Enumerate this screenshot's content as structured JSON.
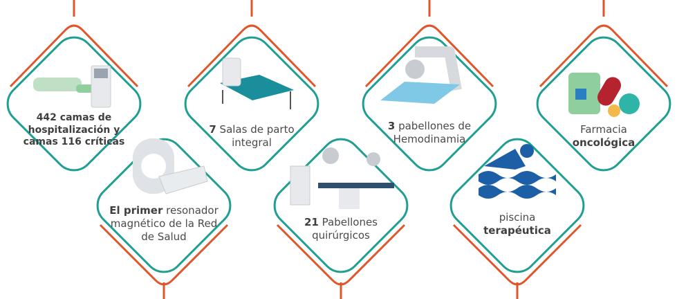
{
  "items": [
    {
      "parts": [
        {
          "text": "442 camas de hospitalización y camas 116 críticas",
          "bold": true
        }
      ]
    },
    {
      "parts": [
        {
          "text": "7",
          "bold": true
        },
        {
          "text": "Salas de parto integral",
          "bold": false
        }
      ]
    },
    {
      "parts": [
        {
          "text": "3",
          "bold": true
        },
        {
          "text": "pabellones de Hemodinamia",
          "bold": false
        }
      ]
    },
    {
      "parts": [
        {
          "text": "Farmacia",
          "bold": false
        },
        {
          "text": "oncológica",
          "bold": true
        }
      ]
    },
    {
      "parts": [
        {
          "text": "El primer",
          "bold": true
        },
        {
          "text": "resonador magnético de la Red de Salud",
          "bold": false
        }
      ]
    },
    {
      "parts": [
        {
          "text": "21",
          "bold": true
        },
        {
          "text": "Pabellones quirúrgicos",
          "bold": false
        }
      ]
    },
    {
      "parts": [
        {
          "text": "piscina",
          "bold": false
        },
        {
          "text": "terapéutica",
          "bold": true
        }
      ]
    }
  ]
}
